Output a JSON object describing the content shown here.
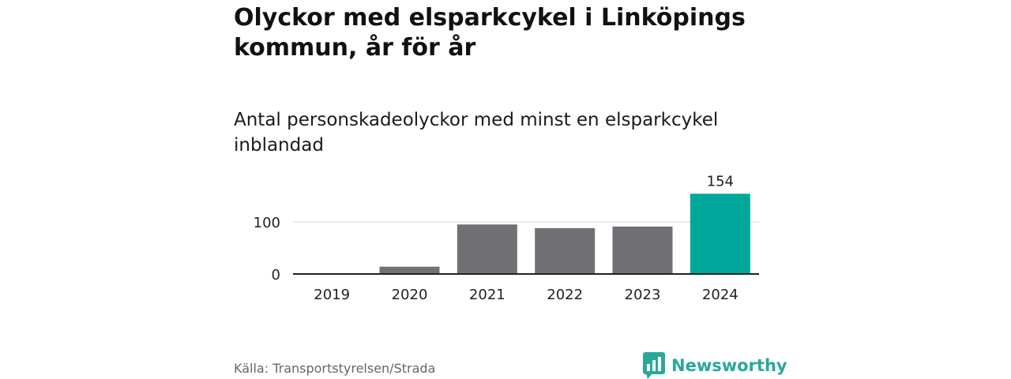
{
  "title": "Olyckor med elsparkcykel i Linköpings kommun, år för år",
  "subtitle": "Antal personskadeolyckor med minst en elsparkcykel inblandad",
  "source": "Källa: Transportstyrelsen/Strada",
  "brand": "Newsworthy",
  "colors": {
    "bar": "#707075",
    "highlight": "#00a79b",
    "brand": "#2aa79b",
    "grid": "#d9d9d9",
    "axis": "#222222"
  },
  "chart_data": {
    "type": "bar",
    "title": "Olyckor med elsparkcykel i Linköpings kommun, år för år",
    "subtitle": "Antal personskadeolyckor med minst en elsparkcykel inblandad",
    "categories": [
      "2019",
      "2020",
      "2021",
      "2022",
      "2023",
      "2024"
    ],
    "values": [
      0,
      14,
      95,
      88,
      91,
      154
    ],
    "highlight_index": 5,
    "data_labels": [
      {
        "index": 5,
        "text": "154"
      }
    ],
    "y_ticks": [
      {
        "value": 0,
        "label": "0"
      },
      {
        "value": 100,
        "label": "100"
      }
    ],
    "ylim": [
      0,
      154
    ],
    "grid": true,
    "xlabel": "",
    "ylabel": ""
  }
}
